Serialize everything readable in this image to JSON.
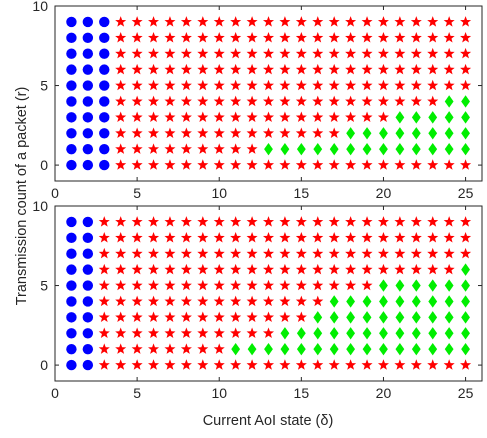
{
  "figure": {
    "shared_ylabel": "Transmission count of a packet (r)",
    "shared_xlabel": "Current AoI state (δ)"
  },
  "legend_map": {
    "blue-circle": {
      "color": "#0000ff",
      "shape": "circle"
    },
    "red-star": {
      "color": "#ff0000",
      "shape": "star"
    },
    "green-diamond": {
      "color": "#00ee00",
      "shape": "diamond"
    }
  },
  "chart_data": [
    {
      "type": "scatter",
      "title": "",
      "xlabel": "",
      "ylabel": "",
      "xlim": [
        0,
        26
      ],
      "ylim": [
        -1,
        10
      ],
      "xticks": [
        0,
        5,
        10,
        15,
        20,
        25
      ],
      "yticks": [
        0,
        5,
        10
      ],
      "xtick_labels": [
        "0",
        "5",
        "10",
        "15",
        "20",
        "25"
      ],
      "ytick_labels": [
        "0",
        "5",
        "10"
      ],
      "grid": false,
      "delta_range": [
        1,
        25
      ],
      "r_range": [
        0,
        9
      ],
      "series": [
        {
          "marker": "blue-circle",
          "color": "#0000ff",
          "points": [
            [
              1,
              0
            ],
            [
              1,
              1
            ],
            [
              1,
              2
            ],
            [
              1,
              3
            ],
            [
              1,
              4
            ],
            [
              1,
              5
            ],
            [
              1,
              6
            ],
            [
              1,
              7
            ],
            [
              1,
              8
            ],
            [
              1,
              9
            ],
            [
              2,
              0
            ],
            [
              2,
              1
            ],
            [
              2,
              2
            ],
            [
              2,
              3
            ],
            [
              2,
              4
            ],
            [
              2,
              5
            ],
            [
              2,
              6
            ],
            [
              2,
              7
            ],
            [
              2,
              8
            ],
            [
              2,
              9
            ],
            [
              3,
              0
            ],
            [
              3,
              1
            ],
            [
              3,
              2
            ],
            [
              3,
              3
            ],
            [
              3,
              4
            ],
            [
              3,
              5
            ],
            [
              3,
              6
            ],
            [
              3,
              7
            ],
            [
              3,
              8
            ],
            [
              3,
              9
            ]
          ]
        },
        {
          "marker": "green-diamond",
          "color": "#00ee00",
          "points": [
            [
              13,
              1
            ],
            [
              14,
              1
            ],
            [
              15,
              1
            ],
            [
              16,
              1
            ],
            [
              17,
              1
            ],
            [
              18,
              1
            ],
            [
              18,
              2
            ],
            [
              19,
              1
            ],
            [
              19,
              2
            ],
            [
              20,
              1
            ],
            [
              20,
              2
            ],
            [
              21,
              1
            ],
            [
              21,
              2
            ],
            [
              21,
              3
            ],
            [
              22,
              1
            ],
            [
              22,
              2
            ],
            [
              22,
              3
            ],
            [
              23,
              1
            ],
            [
              23,
              2
            ],
            [
              23,
              3
            ],
            [
              24,
              1
            ],
            [
              24,
              2
            ],
            [
              24,
              3
            ],
            [
              24,
              4
            ],
            [
              25,
              1
            ],
            [
              25,
              2
            ],
            [
              25,
              3
            ],
            [
              25,
              4
            ]
          ]
        },
        {
          "marker": "red-star",
          "color": "#ff0000",
          "fill_rest_of_grid": true
        }
      ]
    },
    {
      "type": "scatter",
      "title": "",
      "xlabel": "Current AoI state (δ)",
      "ylabel": "",
      "xlim": [
        0,
        26
      ],
      "ylim": [
        -1,
        10
      ],
      "xticks": [
        0,
        5,
        10,
        15,
        20,
        25
      ],
      "yticks": [
        0,
        5,
        10
      ],
      "xtick_labels": [
        "0",
        "5",
        "10",
        "15",
        "20",
        "25"
      ],
      "ytick_labels": [
        "0",
        "5",
        "10"
      ],
      "grid": false,
      "delta_range": [
        1,
        25
      ],
      "r_range": [
        0,
        9
      ],
      "series": [
        {
          "marker": "blue-circle",
          "color": "#0000ff",
          "points": [
            [
              1,
              0
            ],
            [
              1,
              1
            ],
            [
              1,
              2
            ],
            [
              1,
              3
            ],
            [
              1,
              4
            ],
            [
              1,
              5
            ],
            [
              1,
              6
            ],
            [
              1,
              7
            ],
            [
              1,
              8
            ],
            [
              1,
              9
            ],
            [
              2,
              0
            ],
            [
              2,
              1
            ],
            [
              2,
              2
            ],
            [
              2,
              3
            ],
            [
              2,
              4
            ],
            [
              2,
              5
            ],
            [
              2,
              6
            ],
            [
              2,
              7
            ],
            [
              2,
              8
            ],
            [
              2,
              9
            ]
          ]
        },
        {
          "marker": "green-diamond",
          "color": "#00ee00",
          "points": [
            [
              11,
              1
            ],
            [
              12,
              1
            ],
            [
              13,
              1
            ],
            [
              14,
              1
            ],
            [
              14,
              2
            ],
            [
              15,
              1
            ],
            [
              15,
              2
            ],
            [
              16,
              1
            ],
            [
              16,
              2
            ],
            [
              16,
              3
            ],
            [
              17,
              1
            ],
            [
              17,
              2
            ],
            [
              17,
              3
            ],
            [
              17,
              4
            ],
            [
              18,
              1
            ],
            [
              18,
              2
            ],
            [
              18,
              3
            ],
            [
              18,
              4
            ],
            [
              19,
              1
            ],
            [
              19,
              2
            ],
            [
              19,
              3
            ],
            [
              19,
              4
            ],
            [
              20,
              1
            ],
            [
              20,
              2
            ],
            [
              20,
              3
            ],
            [
              20,
              4
            ],
            [
              20,
              5
            ],
            [
              21,
              1
            ],
            [
              21,
              2
            ],
            [
              21,
              3
            ],
            [
              21,
              4
            ],
            [
              21,
              5
            ],
            [
              22,
              1
            ],
            [
              22,
              2
            ],
            [
              22,
              3
            ],
            [
              22,
              4
            ],
            [
              22,
              5
            ],
            [
              23,
              1
            ],
            [
              23,
              2
            ],
            [
              23,
              3
            ],
            [
              23,
              4
            ],
            [
              23,
              5
            ],
            [
              24,
              1
            ],
            [
              24,
              2
            ],
            [
              24,
              3
            ],
            [
              24,
              4
            ],
            [
              24,
              5
            ],
            [
              25,
              1
            ],
            [
              25,
              2
            ],
            [
              25,
              3
            ],
            [
              25,
              4
            ],
            [
              25,
              5
            ],
            [
              25,
              6
            ]
          ]
        },
        {
          "marker": "red-star",
          "color": "#ff0000",
          "fill_rest_of_grid": true
        }
      ]
    }
  ]
}
